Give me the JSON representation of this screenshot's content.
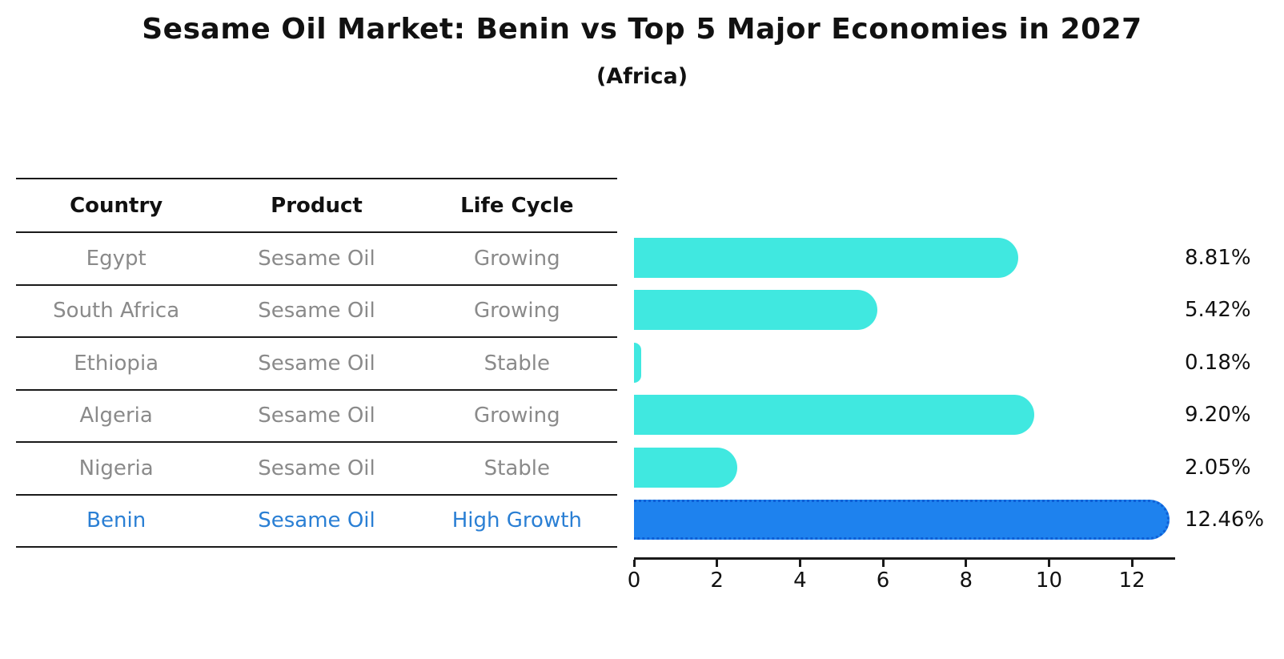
{
  "title": "Sesame Oil Market: Benin vs Top 5 Major Economies in 2027",
  "subtitle": "(Africa)",
  "table": {
    "headers": [
      "Country",
      "Product",
      "Life Cycle"
    ],
    "rows": [
      {
        "country": "Egypt",
        "product": "Sesame Oil",
        "life_cycle": "Growing",
        "highlight": false
      },
      {
        "country": "South Africa",
        "product": "Sesame Oil",
        "life_cycle": "Growing",
        "highlight": false
      },
      {
        "country": "Ethiopia",
        "product": "Sesame Oil",
        "life_cycle": "Stable",
        "highlight": false
      },
      {
        "country": "Algeria",
        "product": "Sesame Oil",
        "life_cycle": "Growing",
        "highlight": false
      },
      {
        "country": "Nigeria",
        "product": "Sesame Oil",
        "life_cycle": "Stable",
        "highlight": false
      },
      {
        "country": "Benin",
        "product": "Sesame Oil",
        "life_cycle": "High Growth",
        "highlight": true
      }
    ]
  },
  "chart_data": {
    "type": "bar",
    "orientation": "horizontal",
    "title": "Sesame Oil Market: Benin vs Top 5 Major Economies in 2027",
    "subtitle": "(Africa)",
    "categories": [
      "Egypt",
      "South Africa",
      "Ethiopia",
      "Algeria",
      "Nigeria",
      "Benin"
    ],
    "values": [
      8.81,
      5.42,
      0.18,
      9.2,
      2.05,
      12.46
    ],
    "value_labels": [
      "8.81%",
      "5.42%",
      "0.18%",
      "9.20%",
      "2.05%",
      "12.46%"
    ],
    "highlight_index": 5,
    "x_ticks": [
      0,
      2,
      4,
      6,
      8,
      10,
      12
    ],
    "xlim": [
      0,
      13
    ],
    "grid": false,
    "legend": false,
    "xlabel": "",
    "ylabel": ""
  },
  "colors": {
    "bar": "#40e8e0",
    "highlight_bar": "#1e82ee",
    "highlight_bar_border": "#0e5fd6",
    "highlight_text": "#2a7fd4",
    "table_text": "#8a8a8a",
    "axis": "#1a1a1a",
    "text": "#111111"
  }
}
